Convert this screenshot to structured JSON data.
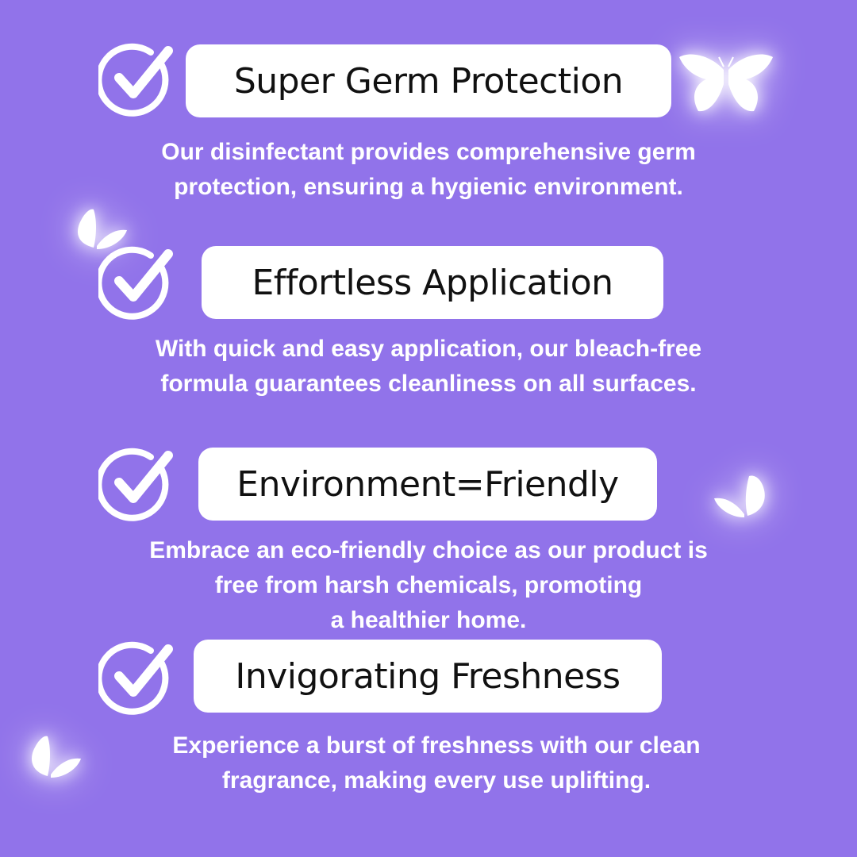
{
  "colors": {
    "background": "#9173ea",
    "pill_background": "#ffffff",
    "title_text": "#111111",
    "description_text": "#ffffff",
    "check_color": "#ffffff"
  },
  "features": [
    {
      "title": "Super Germ Protection",
      "description_lines": [
        "Our disinfectant provides comprehensive germ",
        "protection, ensuring a hygienic environment."
      ],
      "icon": "check-circle-icon"
    },
    {
      "title": "Effortless Application",
      "description_lines": [
        "With quick and easy application, our bleach-free",
        "formula guarantees cleanliness on all surfaces."
      ],
      "icon": "check-circle-icon"
    },
    {
      "title": "Environment=Friendly",
      "description_lines": [
        "Embrace an eco-friendly choice as our product is",
        "free from harsh chemicals, promoting",
        "a healthier home."
      ],
      "icon": "check-circle-icon"
    },
    {
      "title": "Invigorating Freshness",
      "description_lines": [
        "Experience a burst of freshness with our clean",
        "fragrance, making every use uplifting."
      ],
      "icon": "check-circle-icon"
    }
  ],
  "decorations": [
    "butterfly-icon",
    "butterfly-icon",
    "butterfly-icon",
    "butterfly-icon"
  ]
}
